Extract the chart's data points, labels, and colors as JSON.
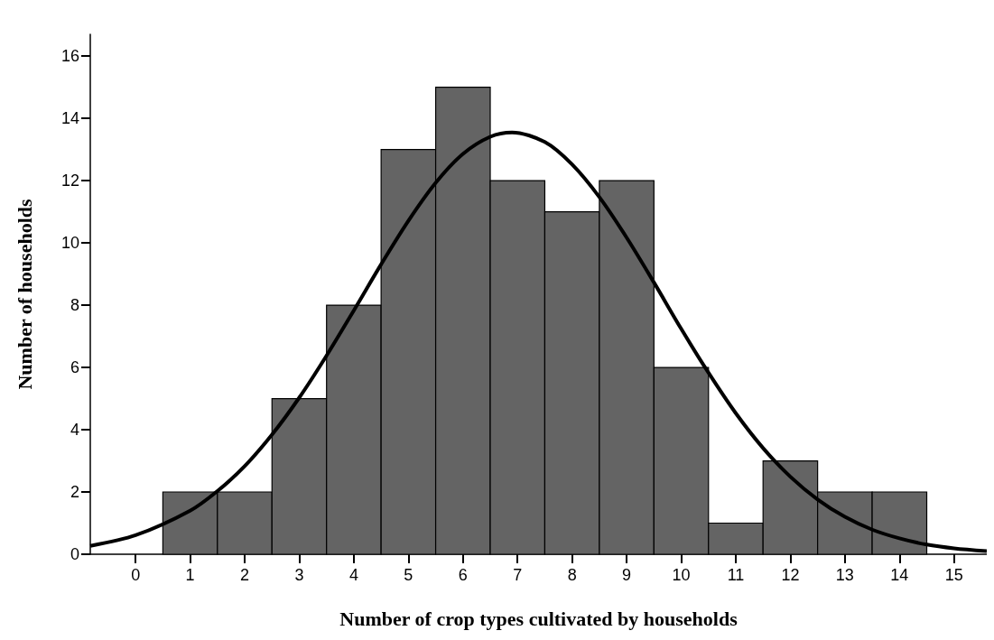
{
  "chart_data": {
    "type": "histogram",
    "xlabel": "Number of crop types cultivated by households",
    "ylabel": "Number of households",
    "bins": [
      0.5,
      1.5,
      2.5,
      3.5,
      4.5,
      5.5,
      6.5,
      7.5,
      8.5,
      9.5,
      10.5,
      11.5,
      12.5,
      13.5,
      14.5
    ],
    "values": [
      2,
      2,
      5,
      8,
      13,
      15,
      12,
      11,
      12,
      6,
      1,
      3,
      2,
      2
    ],
    "color": "#646464",
    "series": [
      {
        "type": "line",
        "color": "#000000",
        "x": [
          -0.83,
          0,
          1,
          1.5,
          2,
          2.5,
          3,
          3.5,
          4,
          4.5,
          5,
          5.5,
          6,
          6.5,
          6.9,
          7.5,
          8,
          8.5,
          9,
          9.5,
          10,
          10.5,
          11,
          11.5,
          12,
          12.5,
          13,
          13.5,
          14,
          14.5,
          15,
          15.6
        ],
        "values": [
          0.27,
          0.61,
          1.4,
          2.03,
          2.83,
          3.84,
          5.03,
          6.38,
          7.83,
          9.31,
          10.71,
          11.93,
          12.86,
          13.41,
          13.55,
          13.24,
          12.52,
          11.47,
          10.17,
          8.73,
          7.24,
          5.83,
          4.53,
          3.41,
          2.49,
          1.76,
          1.2,
          0.79,
          0.51,
          0.31,
          0.19,
          0.1
        ]
      }
    ],
    "xlim": [
      -0.83,
      15.6
    ],
    "xticks": [
      0,
      1,
      2,
      3,
      4,
      5,
      6,
      7,
      8,
      9,
      10,
      11,
      12,
      13,
      14,
      15
    ],
    "ylim": [
      0,
      16.7
    ],
    "yticks": [
      0,
      2,
      4,
      6,
      8,
      10,
      12,
      14,
      16
    ],
    "grid": false,
    "marker": "none",
    "line_style": "solid"
  }
}
